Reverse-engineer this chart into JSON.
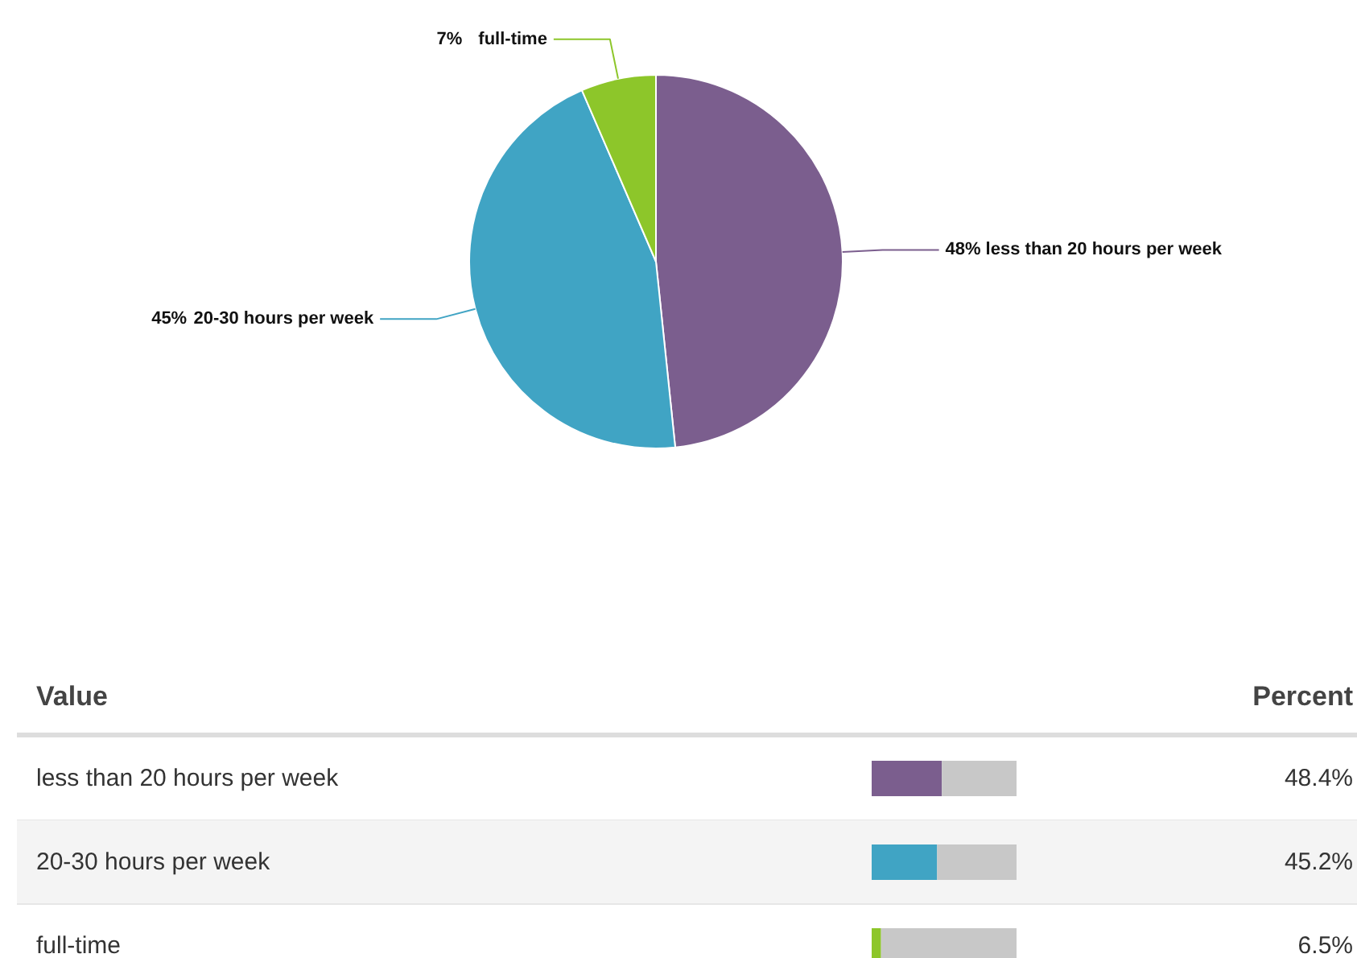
{
  "chart_data": [
    {
      "type": "pie",
      "categories": [
        "less than 20 hours per week",
        "20-30 hours per week",
        "full-time"
      ],
      "values": [
        48.4,
        45.2,
        6.5
      ],
      "colors": [
        "#7b5e8e",
        "#40a4c4",
        "#8dc62a"
      ],
      "value_labels": [
        "48%",
        "45%",
        "7%"
      ]
    },
    {
      "type": "bar",
      "orientation": "horizontal",
      "stacked": true,
      "categories": [
        "less than 20 hours per week",
        "20-30 hours per week",
        "full-time"
      ],
      "series": [
        {
          "colors": [
            "#7b5e8e",
            "#40a4c4",
            "#8dc62a"
          ],
          "values": [
            48.4,
            45.2,
            6.5
          ],
          "value_labels": [
            "48.4%",
            "45.2%",
            "6.5%"
          ]
        },
        {
          "color": "#c8c8c8",
          "values": [
            51.6,
            54.8,
            93.5
          ]
        }
      ],
      "xlim": [
        0,
        100
      ],
      "tick_labels": false,
      "annotations": [
        "Value",
        "Percent"
      ]
    }
  ]
}
